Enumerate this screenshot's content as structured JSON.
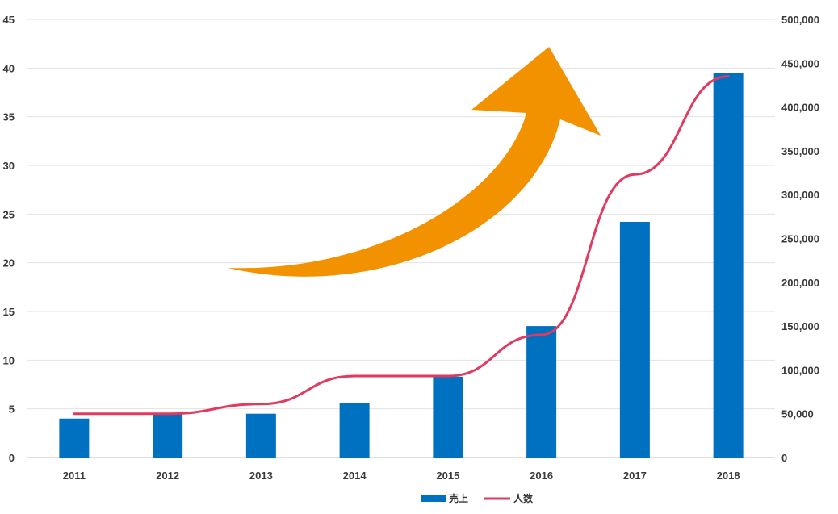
{
  "chart_data": {
    "type": "bar+line",
    "categories": [
      "2011",
      "2012",
      "2013",
      "2014",
      "2015",
      "2016",
      "2017",
      "2018"
    ],
    "series": [
      {
        "name": "売上",
        "type": "bar",
        "axis": "left",
        "color": "#0070c0",
        "values": [
          4,
          4.5,
          4.5,
          5.6,
          8.3,
          13.5,
          24.2,
          39.5
        ]
      },
      {
        "name": "人数",
        "type": "line",
        "axis": "right",
        "color": "#e03a5f",
        "values": [
          50000,
          50000,
          61000,
          93000,
          93000,
          140000,
          323000,
          435000
        ]
      }
    ],
    "y_left": {
      "ylim": [
        0,
        45
      ],
      "ticks": [
        0,
        5,
        10,
        15,
        20,
        25,
        30,
        35,
        40,
        45
      ],
      "tick_labels": [
        "0",
        "5",
        "10",
        "15",
        "20",
        "25",
        "30",
        "35",
        "40",
        "45"
      ]
    },
    "y_right": {
      "ylim": [
        0,
        500000
      ],
      "ticks": [
        0,
        50000,
        100000,
        150000,
        200000,
        250000,
        300000,
        350000,
        400000,
        450000,
        500000
      ],
      "tick_labels": [
        "0",
        "50,000",
        "100,000",
        "150,000",
        "200,000",
        "250,000",
        "300,000",
        "350,000",
        "400,000",
        "450,000",
        "500,000"
      ]
    },
    "grid": true,
    "legend": {
      "placement": "bottom-center",
      "entries": [
        "売上",
        "人数"
      ]
    },
    "annotation": {
      "shape": "curved-arrow",
      "direction": "up-right",
      "color": "#f39200"
    },
    "title": "",
    "xlabel": "",
    "ylabel": ""
  }
}
